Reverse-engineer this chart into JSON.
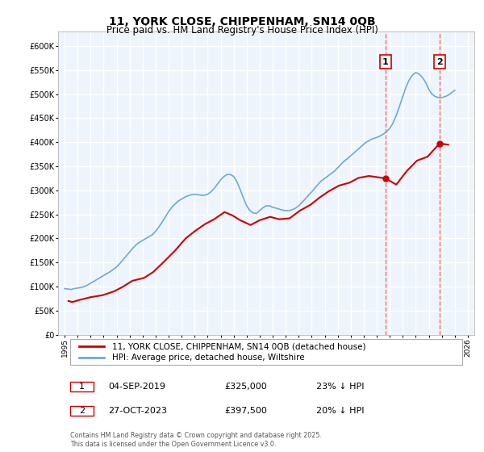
{
  "title1": "11, YORK CLOSE, CHIPPENHAM, SN14 0QB",
  "title2": "Price paid vs. HM Land Registry's House Price Index (HPI)",
  "legend_line1": "11, YORK CLOSE, CHIPPENHAM, SN14 0QB (detached house)",
  "legend_line2": "HPI: Average price, detached house, Wiltshire",
  "footnote": "Contains HM Land Registry data © Crown copyright and database right 2025.\nThis data is licensed under the Open Government Licence v3.0.",
  "transactions": [
    {
      "label": "1",
      "date": "04-SEP-2019",
      "price": "£325,000",
      "hpi_info": "23% ↓ HPI",
      "year": 2019.67,
      "price_val": 325000
    },
    {
      "label": "2",
      "date": "27-OCT-2023",
      "price": "£397,500",
      "hpi_info": "20% ↓ HPI",
      "year": 2023.83,
      "price_val": 397500
    }
  ],
  "hpi_color": "#6fa8d8",
  "price_color": "#cc0000",
  "vline_color": "#ff6666",
  "background_color": "#ffffff",
  "plot_bg_color": "#eef4fb",
  "grid_color": "#ffffff",
  "ylim": [
    0,
    630000
  ],
  "yticks": [
    0,
    50000,
    100000,
    150000,
    200000,
    250000,
    300000,
    350000,
    400000,
    450000,
    500000,
    550000,
    600000
  ],
  "ytick_labels": [
    "£0",
    "£50K",
    "£100K",
    "£150K",
    "£200K",
    "£250K",
    "£300K",
    "£350K",
    "£400K",
    "£450K",
    "£500K",
    "£550K",
    "£600K"
  ],
  "xlim": [
    1994.5,
    2026.5
  ],
  "xticks": [
    1995,
    1996,
    1997,
    1998,
    1999,
    2000,
    2001,
    2002,
    2003,
    2004,
    2005,
    2006,
    2007,
    2008,
    2009,
    2010,
    2011,
    2012,
    2013,
    2014,
    2015,
    2016,
    2017,
    2018,
    2019,
    2020,
    2021,
    2022,
    2023,
    2024,
    2025,
    2026
  ],
  "hpi_x": [
    1995.0,
    1995.25,
    1995.5,
    1995.75,
    1996.0,
    1996.25,
    1996.5,
    1996.75,
    1997.0,
    1997.25,
    1997.5,
    1997.75,
    1998.0,
    1998.25,
    1998.5,
    1998.75,
    1999.0,
    1999.25,
    1999.5,
    1999.75,
    2000.0,
    2000.25,
    2000.5,
    2000.75,
    2001.0,
    2001.25,
    2001.5,
    2001.75,
    2002.0,
    2002.25,
    2002.5,
    2002.75,
    2003.0,
    2003.25,
    2003.5,
    2003.75,
    2004.0,
    2004.25,
    2004.5,
    2004.75,
    2005.0,
    2005.25,
    2005.5,
    2005.75,
    2006.0,
    2006.25,
    2006.5,
    2006.75,
    2007.0,
    2007.25,
    2007.5,
    2007.75,
    2008.0,
    2008.25,
    2008.5,
    2008.75,
    2009.0,
    2009.25,
    2009.5,
    2009.75,
    2010.0,
    2010.25,
    2010.5,
    2010.75,
    2011.0,
    2011.25,
    2011.5,
    2011.75,
    2012.0,
    2012.25,
    2012.5,
    2012.75,
    2013.0,
    2013.25,
    2013.5,
    2013.75,
    2014.0,
    2014.25,
    2014.5,
    2014.75,
    2015.0,
    2015.25,
    2015.5,
    2015.75,
    2016.0,
    2016.25,
    2016.5,
    2016.75,
    2017.0,
    2017.25,
    2017.5,
    2017.75,
    2018.0,
    2018.25,
    2018.5,
    2018.75,
    2019.0,
    2019.25,
    2019.5,
    2019.75,
    2020.0,
    2020.25,
    2020.5,
    2020.75,
    2021.0,
    2021.25,
    2021.5,
    2021.75,
    2022.0,
    2022.25,
    2022.5,
    2022.75,
    2023.0,
    2023.25,
    2023.5,
    2023.75,
    2024.0,
    2024.25,
    2024.5,
    2024.75,
    2025.0
  ],
  "hpi_y": [
    96000,
    95000,
    94000,
    96000,
    97000,
    98000,
    100000,
    103000,
    107000,
    111000,
    115000,
    119000,
    123000,
    127000,
    131000,
    136000,
    141000,
    148000,
    156000,
    164000,
    172000,
    180000,
    187000,
    192000,
    196000,
    200000,
    204000,
    208000,
    215000,
    224000,
    234000,
    245000,
    256000,
    265000,
    272000,
    278000,
    282000,
    286000,
    289000,
    291000,
    292000,
    291000,
    290000,
    290000,
    292000,
    297000,
    304000,
    313000,
    322000,
    329000,
    333000,
    333000,
    329000,
    318000,
    302000,
    284000,
    268000,
    258000,
    253000,
    252000,
    258000,
    264000,
    268000,
    268000,
    265000,
    263000,
    261000,
    259000,
    258000,
    258000,
    260000,
    263000,
    268000,
    275000,
    282000,
    290000,
    297000,
    305000,
    313000,
    320000,
    325000,
    330000,
    335000,
    340000,
    347000,
    354000,
    361000,
    366000,
    372000,
    378000,
    384000,
    390000,
    396000,
    401000,
    405000,
    408000,
    410000,
    413000,
    417000,
    422000,
    429000,
    440000,
    456000,
    475000,
    495000,
    515000,
    530000,
    540000,
    545000,
    542000,
    535000,
    525000,
    510000,
    500000,
    495000,
    493000,
    493000,
    495000,
    498000,
    503000,
    508000
  ],
  "price_x": [
    1995.3,
    1995.6,
    1996.1,
    1997.0,
    1997.9,
    1998.8,
    1999.5,
    2000.2,
    2001.1,
    2001.8,
    2002.5,
    2003.5,
    2004.3,
    2005.0,
    2005.8,
    2006.5,
    2007.3,
    2007.9,
    2008.5,
    2009.3,
    2010.0,
    2010.8,
    2011.5,
    2012.3,
    2013.1,
    2013.9,
    2014.6,
    2015.3,
    2016.1,
    2016.9,
    2017.6,
    2018.4,
    2019.67,
    2020.5,
    2021.3,
    2022.1,
    2022.9,
    2023.83,
    2024.5
  ],
  "price_y": [
    70000,
    68000,
    72000,
    78000,
    82000,
    90000,
    100000,
    112000,
    118000,
    130000,
    148000,
    175000,
    200000,
    215000,
    230000,
    240000,
    255000,
    248000,
    238000,
    228000,
    238000,
    245000,
    240000,
    242000,
    258000,
    270000,
    285000,
    298000,
    310000,
    316000,
    326000,
    330000,
    325000,
    312000,
    340000,
    362000,
    370000,
    397500,
    395000
  ]
}
